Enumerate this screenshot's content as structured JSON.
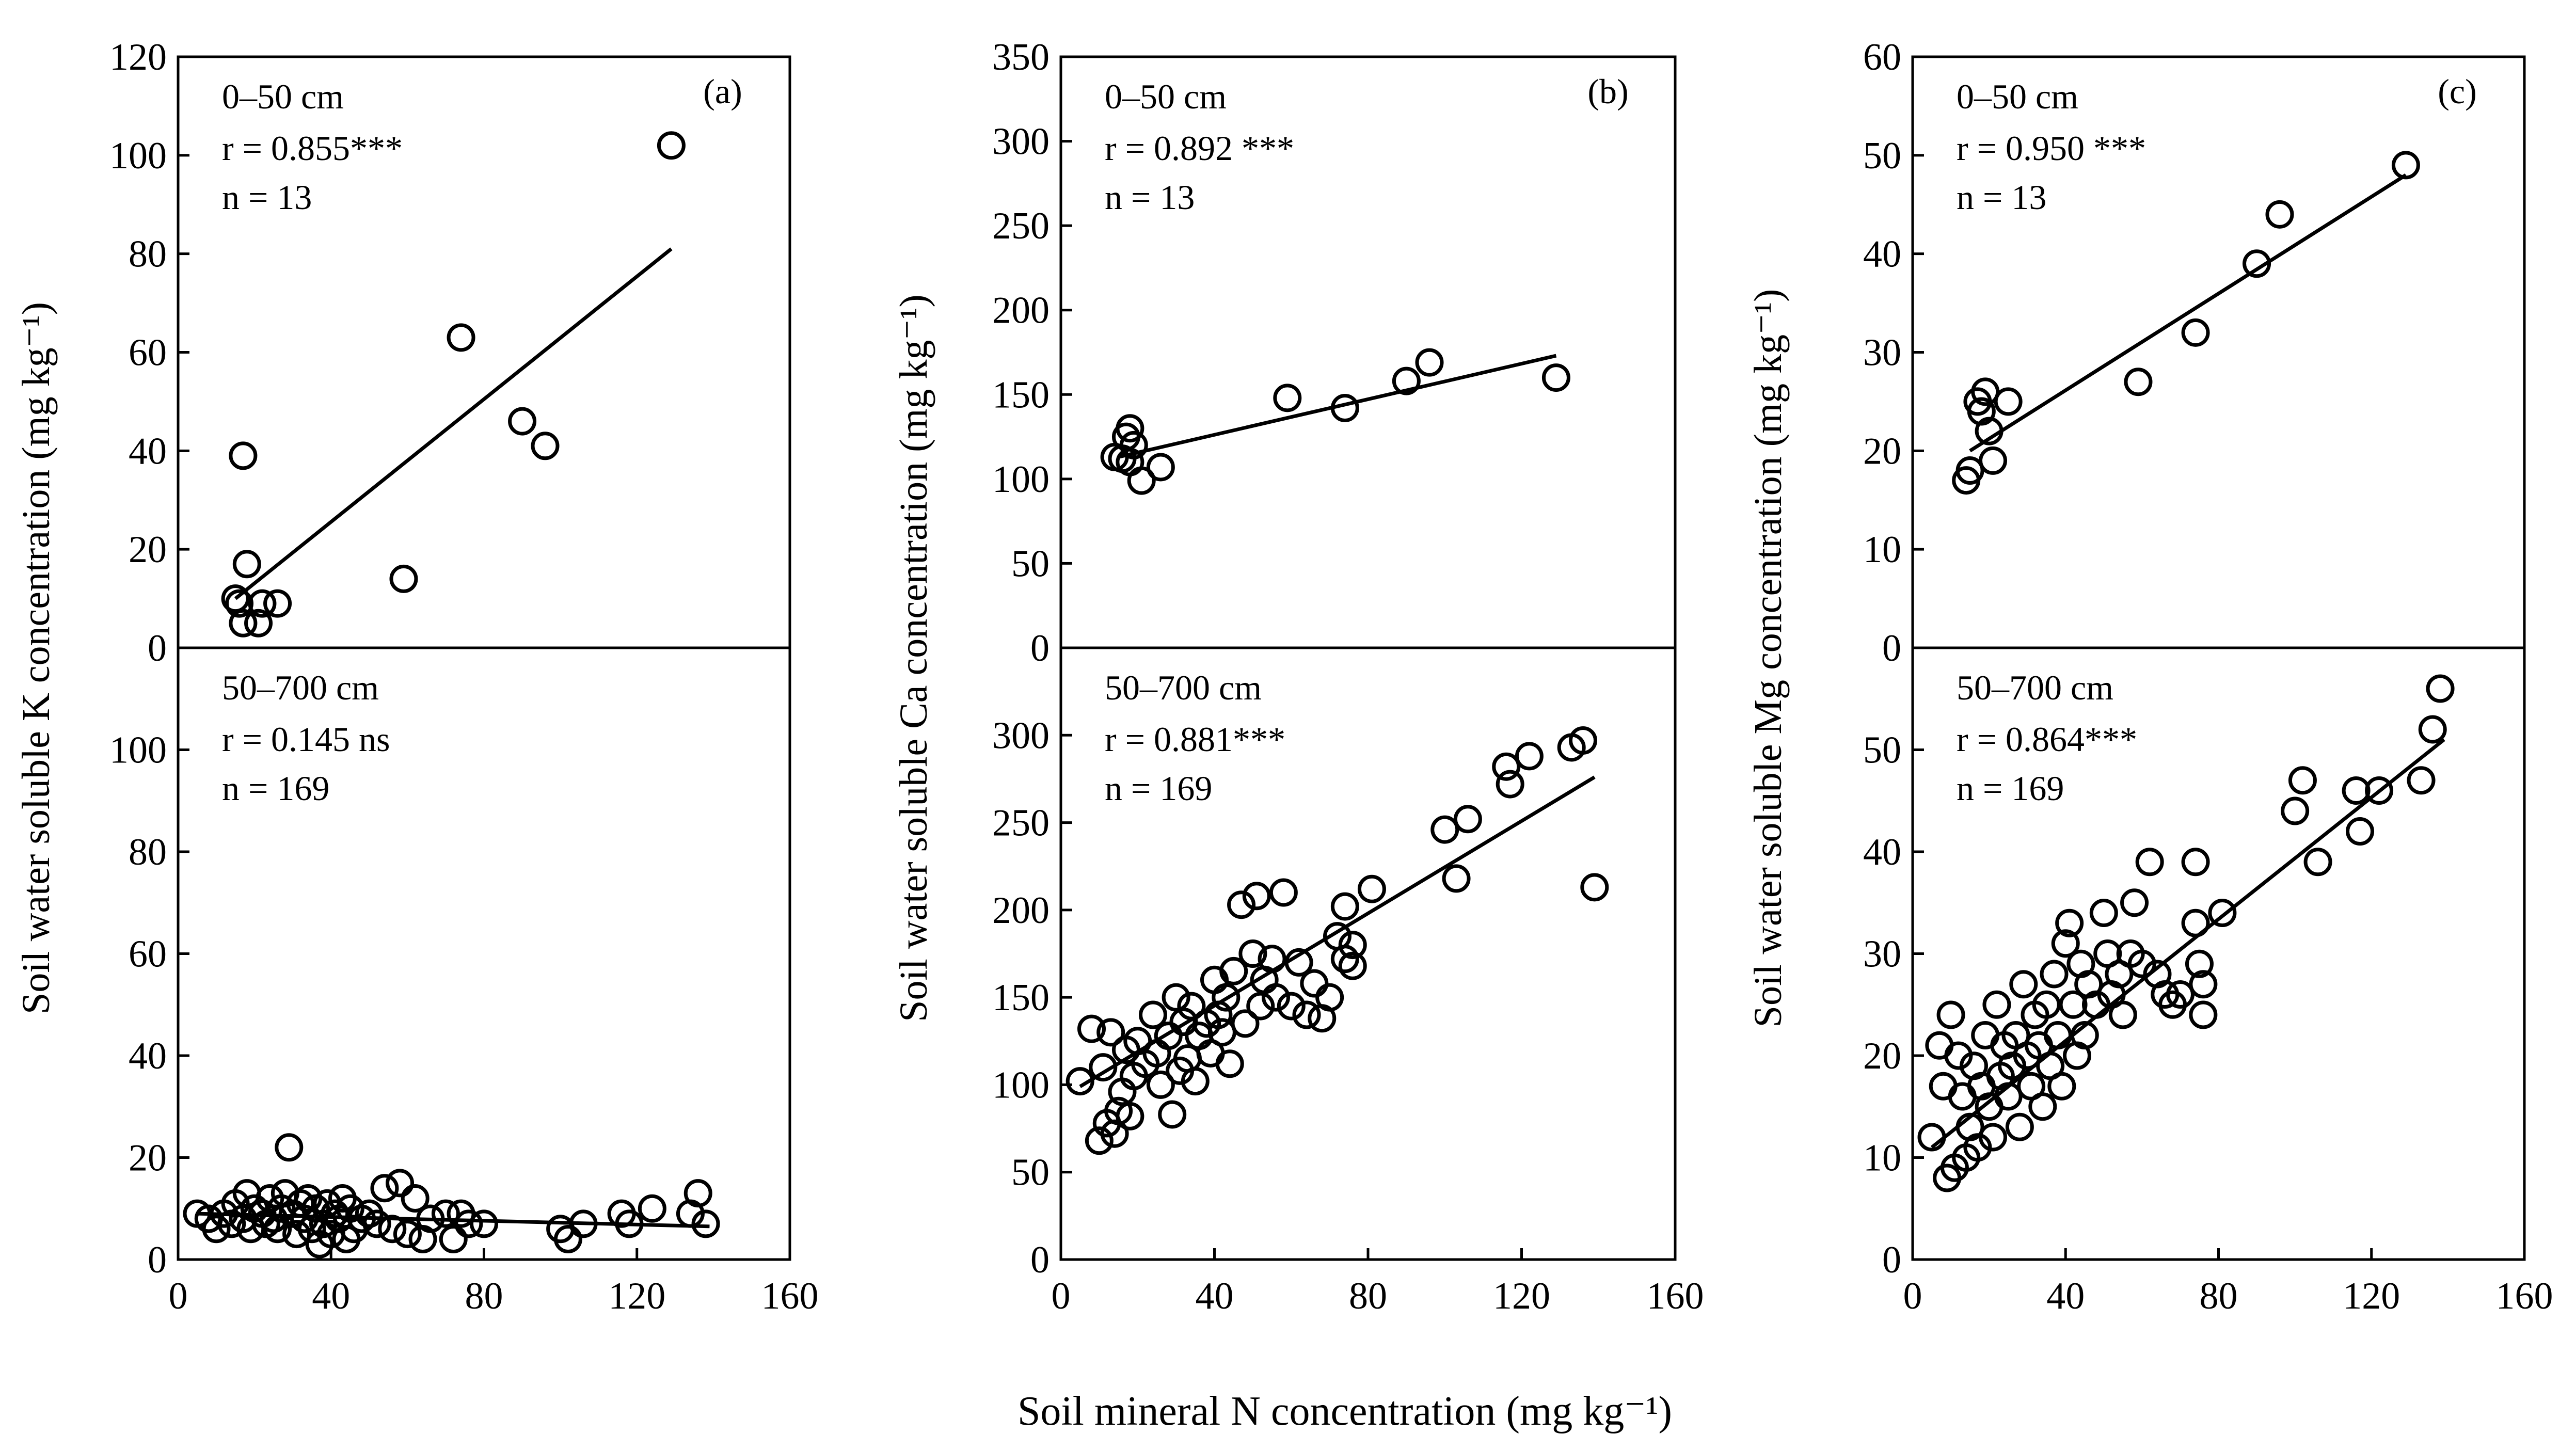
{
  "figure": {
    "xlabel": "Soil mineral N concentration (mg kg⁻¹)"
  },
  "chart_data": [
    {
      "type": "scatter",
      "panel_label": "(a)",
      "ylabel": "Soil water soluble K concentration (mg kg⁻¹)",
      "xlim": [
        0,
        160
      ],
      "x_ticks": [
        "0",
        "40",
        "80",
        "120",
        "160"
      ],
      "top": {
        "depth": "0–50 cm",
        "r": "r = 0.855***",
        "n": "n = 13",
        "ylim": [
          0,
          120
        ],
        "y_ticks": [
          "0",
          "20",
          "40",
          "60",
          "80",
          "100",
          "120"
        ],
        "points": [
          [
            15,
            10
          ],
          [
            16,
            9
          ],
          [
            17,
            39
          ],
          [
            18,
            17
          ],
          [
            17,
            5
          ],
          [
            21,
            5
          ],
          [
            22,
            9
          ],
          [
            26,
            9
          ],
          [
            59,
            14
          ],
          [
            74,
            63
          ],
          [
            90,
            46
          ],
          [
            96,
            41
          ],
          [
            129,
            102
          ]
        ],
        "fit": [
          [
            15,
            10
          ],
          [
            129,
            81
          ]
        ]
      },
      "bottom": {
        "depth": "50–700 cm",
        "r": "r = 0.145 ns",
        "n": "n = 169",
        "ylim": [
          0,
          120
        ],
        "y_ticks": [
          "0",
          "20",
          "40",
          "60",
          "80",
          "100"
        ],
        "points": [
          [
            5,
            9
          ],
          [
            8,
            8
          ],
          [
            10,
            6
          ],
          [
            12,
            9
          ],
          [
            14,
            7
          ],
          [
            15,
            11
          ],
          [
            17,
            8
          ],
          [
            18,
            13
          ],
          [
            19,
            6
          ],
          [
            20,
            10
          ],
          [
            22,
            9
          ],
          [
            23,
            7
          ],
          [
            24,
            12
          ],
          [
            25,
            8
          ],
          [
            26,
            6
          ],
          [
            27,
            10
          ],
          [
            28,
            13
          ],
          [
            29,
            22
          ],
          [
            30,
            9
          ],
          [
            31,
            5
          ],
          [
            32,
            11
          ],
          [
            33,
            8
          ],
          [
            34,
            12
          ],
          [
            35,
            6
          ],
          [
            36,
            10
          ],
          [
            37,
            3
          ],
          [
            38,
            7
          ],
          [
            39,
            11
          ],
          [
            40,
            5
          ],
          [
            41,
            9
          ],
          [
            42,
            8
          ],
          [
            43,
            12
          ],
          [
            44,
            4
          ],
          [
            45,
            10
          ],
          [
            46,
            6
          ],
          [
            48,
            8
          ],
          [
            50,
            9
          ],
          [
            52,
            7
          ],
          [
            54,
            14
          ],
          [
            56,
            6
          ],
          [
            58,
            15
          ],
          [
            60,
            5
          ],
          [
            62,
            12
          ],
          [
            64,
            4
          ],
          [
            66,
            8
          ],
          [
            70,
            9
          ],
          [
            72,
            4
          ],
          [
            74,
            9
          ],
          [
            76,
            7
          ],
          [
            80,
            7
          ],
          [
            100,
            6
          ],
          [
            102,
            4
          ],
          [
            106,
            7
          ],
          [
            116,
            9
          ],
          [
            118,
            7
          ],
          [
            124,
            10
          ],
          [
            134,
            9
          ],
          [
            136,
            13
          ],
          [
            138,
            7
          ]
        ],
        "fit": [
          [
            5,
            9
          ],
          [
            139,
            6.5
          ]
        ]
      }
    },
    {
      "type": "scatter",
      "panel_label": "(b)",
      "ylabel": "Soil water soluble Ca concentration (mg kg⁻¹)",
      "xlim": [
        0,
        160
      ],
      "x_ticks": [
        "0",
        "40",
        "80",
        "120",
        "160"
      ],
      "top": {
        "depth": "0–50 cm",
        "r": "r = 0.892 ***",
        "n": "n = 13",
        "ylim": [
          0,
          350
        ],
        "y_ticks": [
          "0",
          "50",
          "100",
          "150",
          "200",
          "250",
          "300",
          "350"
        ],
        "points": [
          [
            14,
            113
          ],
          [
            16,
            112
          ],
          [
            17,
            125
          ],
          [
            18,
            130
          ],
          [
            19,
            120
          ],
          [
            21,
            99
          ],
          [
            26,
            107
          ],
          [
            59,
            148
          ],
          [
            74,
            142
          ],
          [
            90,
            158
          ],
          [
            96,
            169
          ],
          [
            129,
            160
          ],
          [
            18,
            110
          ]
        ],
        "fit": [
          [
            15,
            113
          ],
          [
            129,
            173
          ]
        ]
      },
      "bottom": {
        "depth": "50–700 cm",
        "r": "r = 0.881***",
        "n": "n = 169",
        "ylim": [
          0,
          350
        ],
        "y_ticks": [
          "0",
          "50",
          "100",
          "150",
          "200",
          "250",
          "300"
        ],
        "points": [
          [
            5,
            102
          ],
          [
            8,
            132
          ],
          [
            10,
            68
          ],
          [
            11,
            110
          ],
          [
            12,
            78
          ],
          [
            13,
            130
          ],
          [
            14,
            72
          ],
          [
            15,
            85
          ],
          [
            16,
            96
          ],
          [
            17,
            120
          ],
          [
            18,
            82
          ],
          [
            19,
            105
          ],
          [
            20,
            125
          ],
          [
            22,
            112
          ],
          [
            24,
            140
          ],
          [
            25,
            118
          ],
          [
            26,
            100
          ],
          [
            28,
            128
          ],
          [
            29,
            83
          ],
          [
            30,
            150
          ],
          [
            31,
            108
          ],
          [
            32,
            136
          ],
          [
            33,
            115
          ],
          [
            34,
            145
          ],
          [
            35,
            102
          ],
          [
            36,
            128
          ],
          [
            38,
            135
          ],
          [
            39,
            118
          ],
          [
            40,
            160
          ],
          [
            41,
            140
          ],
          [
            42,
            130
          ],
          [
            43,
            150
          ],
          [
            44,
            112
          ],
          [
            45,
            165
          ],
          [
            47,
            203
          ],
          [
            48,
            135
          ],
          [
            50,
            175
          ],
          [
            51,
            208
          ],
          [
            52,
            145
          ],
          [
            53,
            160
          ],
          [
            55,
            172
          ],
          [
            56,
            150
          ],
          [
            58,
            210
          ],
          [
            60,
            145
          ],
          [
            62,
            170
          ],
          [
            64,
            140
          ],
          [
            66,
            158
          ],
          [
            68,
            138
          ],
          [
            70,
            150
          ],
          [
            72,
            185
          ],
          [
            74,
            202
          ],
          [
            74,
            172
          ],
          [
            76,
            180
          ],
          [
            76,
            168
          ],
          [
            81,
            212
          ],
          [
            100,
            246
          ],
          [
            103,
            218
          ],
          [
            106,
            252
          ],
          [
            116,
            282
          ],
          [
            117,
            272
          ],
          [
            122,
            288
          ],
          [
            133,
            293
          ],
          [
            136,
            297
          ],
          [
            139,
            213
          ]
        ],
        "fit": [
          [
            5,
            99
          ],
          [
            139,
            276
          ]
        ]
      }
    },
    {
      "type": "scatter",
      "panel_label": "(c)",
      "ylabel": "Soil water soluble Mg concentration (mg kg⁻¹)",
      "xlim": [
        0,
        160
      ],
      "x_ticks": [
        "0",
        "40",
        "80",
        "120",
        "160"
      ],
      "top": {
        "depth": "0–50 cm",
        "r": "r = 0.950 ***",
        "n": "n = 13",
        "ylim": [
          0,
          60
        ],
        "y_ticks": [
          "0",
          "10",
          "20",
          "30",
          "40",
          "50",
          "60"
        ],
        "points": [
          [
            14,
            17
          ],
          [
            15,
            18
          ],
          [
            17,
            25
          ],
          [
            19,
            26
          ],
          [
            20,
            22
          ],
          [
            21,
            19
          ],
          [
            25,
            25
          ],
          [
            59,
            27
          ],
          [
            74,
            32
          ],
          [
            90,
            39
          ],
          [
            96,
            44
          ],
          [
            129,
            49
          ],
          [
            18,
            24
          ]
        ],
        "fit": [
          [
            15,
            20
          ],
          [
            129,
            48
          ]
        ]
      },
      "bottom": {
        "depth": "50–700 cm",
        "r": "r = 0.864***",
        "n": "n = 169",
        "ylim": [
          0,
          60
        ],
        "y_ticks": [
          "0",
          "10",
          "20",
          "30",
          "40",
          "50"
        ],
        "points": [
          [
            5,
            12
          ],
          [
            7,
            21
          ],
          [
            8,
            17
          ],
          [
            9,
            8
          ],
          [
            10,
            24
          ],
          [
            11,
            9
          ],
          [
            12,
            20
          ],
          [
            13,
            16
          ],
          [
            14,
            10
          ],
          [
            15,
            13
          ],
          [
            16,
            19
          ],
          [
            17,
            11
          ],
          [
            18,
            17
          ],
          [
            19,
            22
          ],
          [
            20,
            15
          ],
          [
            21,
            12
          ],
          [
            22,
            25
          ],
          [
            23,
            18
          ],
          [
            24,
            21
          ],
          [
            25,
            16
          ],
          [
            26,
            19
          ],
          [
            27,
            22
          ],
          [
            28,
            13
          ],
          [
            29,
            27
          ],
          [
            30,
            20
          ],
          [
            31,
            17
          ],
          [
            32,
            24
          ],
          [
            33,
            21
          ],
          [
            34,
            15
          ],
          [
            35,
            25
          ],
          [
            36,
            19
          ],
          [
            37,
            28
          ],
          [
            38,
            22
          ],
          [
            39,
            17
          ],
          [
            40,
            31
          ],
          [
            41,
            33
          ],
          [
            42,
            25
          ],
          [
            43,
            20
          ],
          [
            44,
            29
          ],
          [
            45,
            22
          ],
          [
            46,
            27
          ],
          [
            48,
            25
          ],
          [
            50,
            34
          ],
          [
            51,
            30
          ],
          [
            52,
            26
          ],
          [
            54,
            28
          ],
          [
            55,
            24
          ],
          [
            57,
            30
          ],
          [
            58,
            35
          ],
          [
            60,
            29
          ],
          [
            62,
            39
          ],
          [
            64,
            28
          ],
          [
            66,
            26
          ],
          [
            68,
            25
          ],
          [
            70,
            26
          ],
          [
            74,
            39
          ],
          [
            74,
            33
          ],
          [
            75,
            29
          ],
          [
            76,
            27
          ],
          [
            76,
            24
          ],
          [
            81,
            34
          ],
          [
            100,
            44
          ],
          [
            102,
            47
          ],
          [
            106,
            39
          ],
          [
            116,
            46
          ],
          [
            117,
            42
          ],
          [
            122,
            46
          ],
          [
            133,
            47
          ],
          [
            136,
            52
          ],
          [
            138,
            56
          ]
        ],
        "fit": [
          [
            5,
            11
          ],
          [
            139,
            51
          ]
        ]
      }
    }
  ]
}
